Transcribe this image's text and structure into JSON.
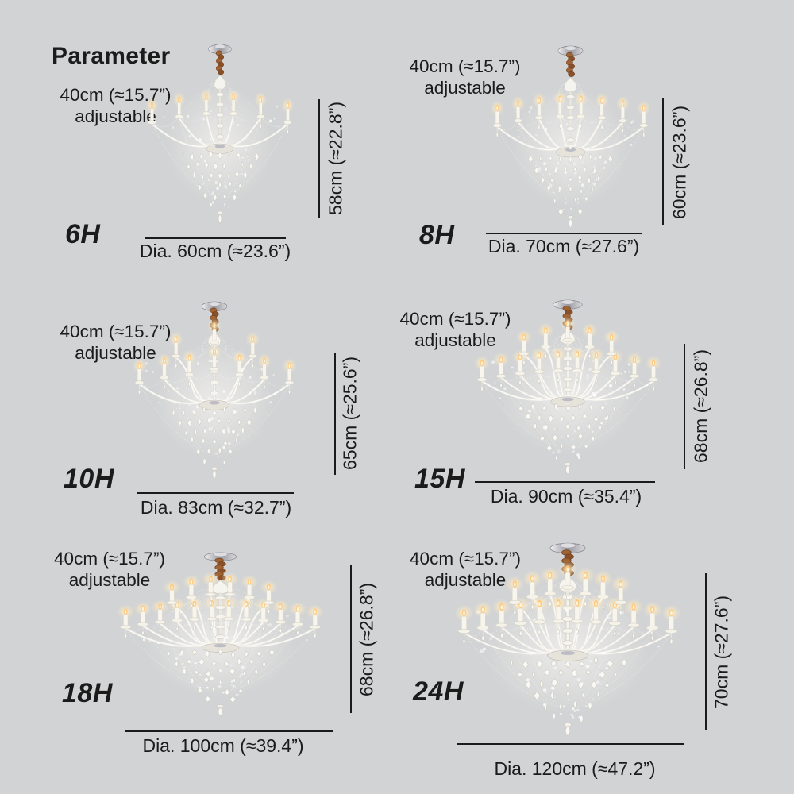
{
  "page": {
    "title": "Parameter",
    "background_color": "#d2d3d4",
    "text_color": "#1b1b1b",
    "dimension_line_color": "#1b1b1b",
    "chain_color": "#8a5028",
    "crystal_color": "#f6f4ee"
  },
  "shared": {
    "adjustable_line1": "40cm (≈15.7”)",
    "adjustable_line2": "adjustable"
  },
  "models": [
    {
      "label": "6H",
      "lights": 6,
      "height_label": "58cm (≈22.8”)",
      "dia_label": "Dia. 60cm (≈23.6”)"
    },
    {
      "label": "8H",
      "lights": 8,
      "height_label": "60cm (≈23.6”)",
      "dia_label": "Dia. 70cm (≈27.6”)"
    },
    {
      "label": "10H",
      "lights": 10,
      "height_label": "65cm (≈25.6”)",
      "dia_label": "Dia. 83cm (≈32.7”)"
    },
    {
      "label": "15H",
      "lights": 15,
      "height_label": "68cm (≈26.8”)",
      "dia_label": "Dia. 90cm (≈35.4”)"
    },
    {
      "label": "18H",
      "lights": 18,
      "height_label": "68cm (≈26.8”)",
      "dia_label": "Dia. 100cm (≈39.4”)"
    },
    {
      "label": "24H",
      "lights": 24,
      "height_label": "70cm (≈27.6”)",
      "dia_label": "Dia. 120cm (≈47.2”)"
    }
  ]
}
